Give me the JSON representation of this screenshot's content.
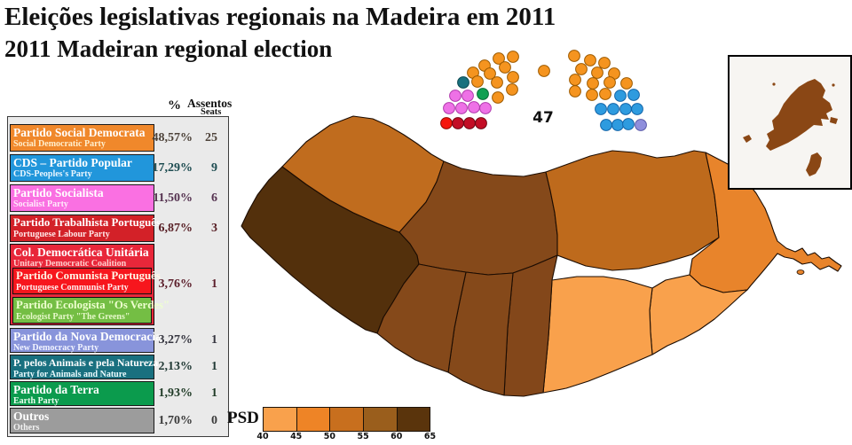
{
  "title": {
    "line1": "Eleições legislativas regionais na Madeira em 2011",
    "line2": "2011 Madeiran regional election"
  },
  "table": {
    "header": {
      "percent": "%",
      "seats_line1": "Assentos",
      "seats_line2": "Seats"
    },
    "rows": [
      {
        "id": "psd",
        "name": "Partido Social Democrata",
        "name_en": "Social Democratic Party",
        "percent": "48,57%",
        "seats": "25",
        "color": "#F0882B",
        "text_color": "#FFFFFF",
        "sub_color": "#FFEFCE",
        "value_color": "#4D4239"
      },
      {
        "id": "cds",
        "name": "CDS – Partido Popular",
        "name_en": "CDS-Peoples's Party",
        "percent": "17,29%",
        "seats": "9",
        "color": "#2196DB",
        "text_color": "#FFFFFF",
        "sub_color": "#EAF6FF",
        "value_color": "#1C4B50"
      },
      {
        "id": "ps",
        "name": "Partido Socialista",
        "name_en": "Socialist Party",
        "percent": "11,50%",
        "seats": "6",
        "color": "#FA70E2",
        "text_color": "#FFFFFF",
        "sub_color": "#FFEBFB",
        "value_color": "#553250"
      },
      {
        "id": "ptp",
        "name": "Partido Trabalhista Português",
        "name_en": "Portuguese Labour Party",
        "percent": "6,87%",
        "seats": "3",
        "color": "#D32128",
        "text_color": "#FFFFFF",
        "sub_color": "#FFE9E9",
        "value_color": "#571E24"
      },
      {
        "id": "cdu",
        "name": "Col. Democrática Unitária",
        "name_en": "Unitary Democratic Coalition",
        "percent": "3,76%",
        "seats": "1",
        "color": "#E8273A",
        "text_color": "#FFFFFF",
        "sub_color": "#FFCFCF",
        "value_color": "#5C1F2B",
        "children": [
          {
            "id": "pcp",
            "name": "Partido Comunista Português",
            "name_en": "Portuguese Communist Party",
            "color": "#F7161D",
            "text_color": "#FFF6E6",
            "sub_color": "#FFEFEF"
          },
          {
            "id": "pev",
            "name": "Partido Ecologista \"Os Verdes\"",
            "name_en": "Ecologist Party \"The Greens\"",
            "color": "#74BE44",
            "text_color": "#EFFFD0",
            "sub_color": "#E6F8CA"
          }
        ]
      },
      {
        "id": "pnd",
        "name": "Partido da Nova Democracia",
        "name_en": "New Democracy Party",
        "percent": "3,27%",
        "seats": "1",
        "color": "#8894DB",
        "text_color": "#FFFFFF",
        "sub_color": "#F2F4FF",
        "value_color": "#35353F"
      },
      {
        "id": "pan",
        "name": "P. pelos Animais e pela Natureza",
        "name_en": "Party for Animals and Nature",
        "percent": "2,13%",
        "seats": "1",
        "color": "#19707F",
        "text_color": "#FFFFFF",
        "sub_color": "#EAFBFF",
        "value_color": "#223A36"
      },
      {
        "id": "mpt",
        "name": "Partido da Terra",
        "name_en": "Earth Party",
        "percent": "1,93%",
        "seats": "1",
        "color": "#0B9B4D",
        "text_color": "#FFFFFF",
        "sub_color": "#EAFFEF",
        "value_color": "#1F3A26"
      },
      {
        "id": "outros",
        "name": "Outros",
        "name_en": "Others",
        "percent": "1,70%",
        "seats": "0",
        "color": "#9C9C9C",
        "text_color": "#FFFFFF",
        "sub_color": "#F2F2F2",
        "value_color": "#3A3A3A"
      }
    ]
  },
  "diagram": {
    "total_label": "47",
    "dot_colors": {
      "psd": "#F5941F",
      "cds": "#2E9BDF",
      "ps": "#EE71E6",
      "ptp": "#C30D25",
      "cdu": "#F5150C",
      "pan": "#19707E",
      "mpt": "#0FA052",
      "pnd": "#8F8FDC"
    }
  },
  "map": {
    "fills": {
      "porto_moniz": "#C06C1E",
      "sao_vicente": "#85491A",
      "santana": "#BE6A1C",
      "machico": "#E8842B",
      "santa_cruz": "#F9A14C",
      "funchal": "#F9A14C",
      "camara_de_lobos": "#83471A",
      "ribeira_brava": "#85491A",
      "ponta_do_sol": "#85491A",
      "calheta": "#53300C",
      "islets": "#E8842B",
      "inset_island": "#8A4715"
    }
  },
  "scale": {
    "label": "PSD",
    "ticks": [
      "40",
      "45",
      "50",
      "55",
      "60",
      "65"
    ],
    "colors": [
      "#F9A14C",
      "#EE8426",
      "#C86F1E",
      "#9A5E1C",
      "#5A340C"
    ]
  }
}
